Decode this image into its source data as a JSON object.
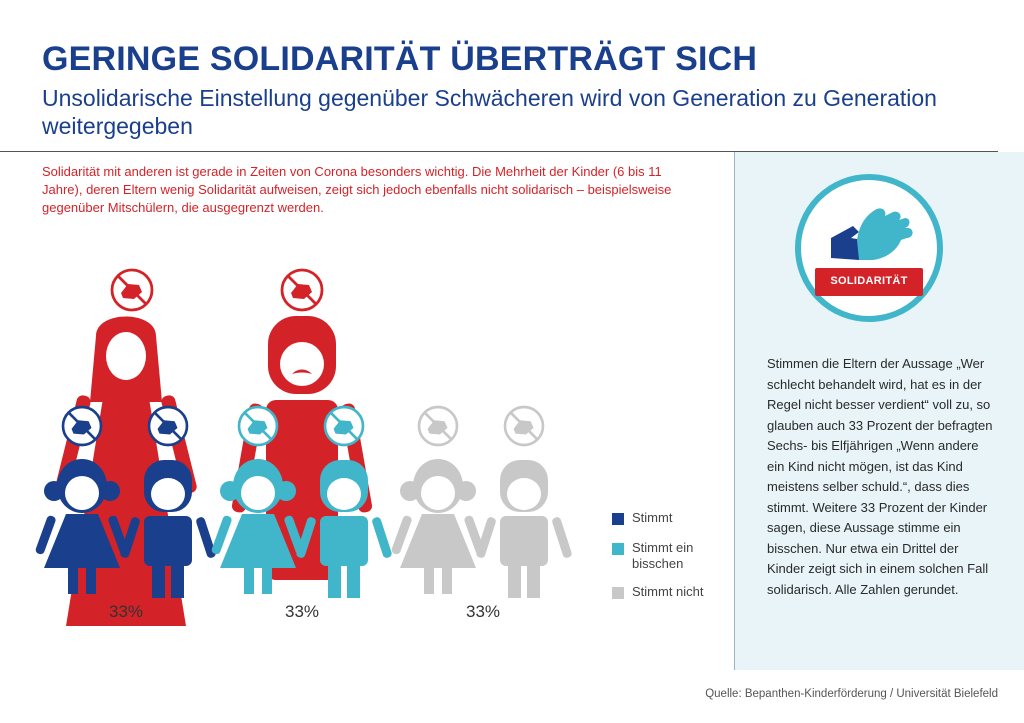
{
  "header": {
    "title": "GERINGE SOLIDARITÄT ÜBERTRÄGT SICH",
    "subtitle": "Unsolidarische Einstellung gegenüber Schwächeren wird von Generation zu Generation weitergegeben"
  },
  "intro": "Solidarität mit anderen ist gerade in Zeiten von Corona besonders wichtig. Die Mehrheit der Kinder (6 bis 11 Jahre), deren Eltern wenig Solidarität aufweisen, zeigt sich jedoch ebenfalls nicht solidarisch – beispielsweise gegenüber Mitschülern, die ausgegrenzt werden.",
  "sidebar": {
    "badge_label": "SOLIDARITÄT",
    "badge_icon": "handshake-icon",
    "text": "Stimmen die Eltern der Aussage „Wer schlecht behandelt wird, hat es in der Regel nicht besser verdient“ voll zu, so glauben auch 33 Prozent der befragten Sechs- bis Elfjährigen „Wenn andere ein Kind nicht mögen, ist das Kind meistens selber schuld.“, dass dies stimmt. Weitere 33 Prozent der Kinder sagen, diese Aussage stimme ein bisschen. Nur etwa ein Drittel der Kinder zeigt sich in einem solchen Fall solidarisch. Alle Zahlen gerundet."
  },
  "chart_data": {
    "type": "bar",
    "categories": [
      "Stimmt",
      "Stimmt ein bisschen",
      "Stimmt nicht"
    ],
    "values": [
      33,
      33,
      33
    ],
    "value_labels": [
      "33%",
      "33%",
      "33%"
    ],
    "legend": [
      "Stimmt",
      "Stimmt ein bisschen",
      "Stimmt nicht"
    ],
    "legend_lines": [
      [
        "Stimmt"
      ],
      [
        "Stimmt ein",
        "bisschen"
      ],
      [
        "Stimmt nicht"
      ]
    ],
    "colors": [
      "#1a3f8c",
      "#41b6cb",
      "#c8c8c8"
    ],
    "parent_color": "#d42328",
    "legend_position": "right"
  },
  "source": "Quelle: Bepanthen-Kinderförderung / Universität Bielefeld"
}
